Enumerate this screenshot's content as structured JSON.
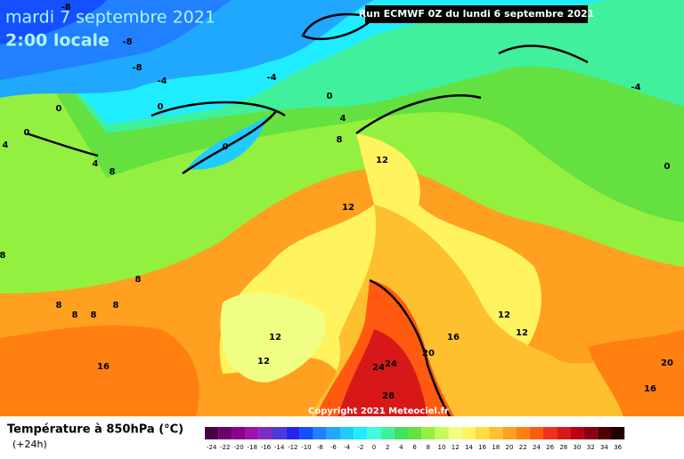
{
  "header": {
    "date": "mardi 7 septembre 2021",
    "time": "2:00 locale",
    "run": "Run ECMWF 0Z du lundi 6 septembre 2021"
  },
  "map": {
    "copyright": "Copyright 2021 Meteociel.fr",
    "contour_labels": [
      "-8",
      "-8",
      "-8",
      "-4",
      "-4",
      "0",
      "0",
      "0",
      "0",
      "0",
      "4",
      "8",
      "4",
      "8",
      "4",
      "-4",
      "0",
      "12",
      "12",
      "8",
      "8",
      "8",
      "8",
      "8",
      "8",
      "12",
      "12",
      "16",
      "12",
      "12",
      "16",
      "20",
      "24",
      "24",
      "28",
      "20",
      "16"
    ]
  },
  "legend": {
    "title": "Température à 850hPa (°C)",
    "subtitle": "(+24h)",
    "values": [
      -24,
      -22,
      -20,
      -18,
      -16,
      -14,
      -12,
      -10,
      -8,
      -6,
      -4,
      -2,
      0,
      2,
      4,
      6,
      8,
      10,
      12,
      14,
      16,
      18,
      20,
      22,
      24,
      26,
      28,
      30,
      32,
      34,
      36
    ],
    "colors": [
      "#4a0046",
      "#6a0068",
      "#8a008a",
      "#a010ac",
      "#7a2cc8",
      "#4a3ad8",
      "#2424f0",
      "#1450ff",
      "#2080ff",
      "#20a8ff",
      "#20ccff",
      "#20ecff",
      "#40fcd8",
      "#40f09c",
      "#40e060",
      "#64e040",
      "#94f040",
      "#c4fa5c",
      "#f0ff84",
      "#fff460",
      "#ffdc40",
      "#ffc030",
      "#ffa020",
      "#ff8010",
      "#ff5a10",
      "#f03020",
      "#d81818",
      "#b80010",
      "#880010",
      "#500000",
      "#200000"
    ]
  }
}
